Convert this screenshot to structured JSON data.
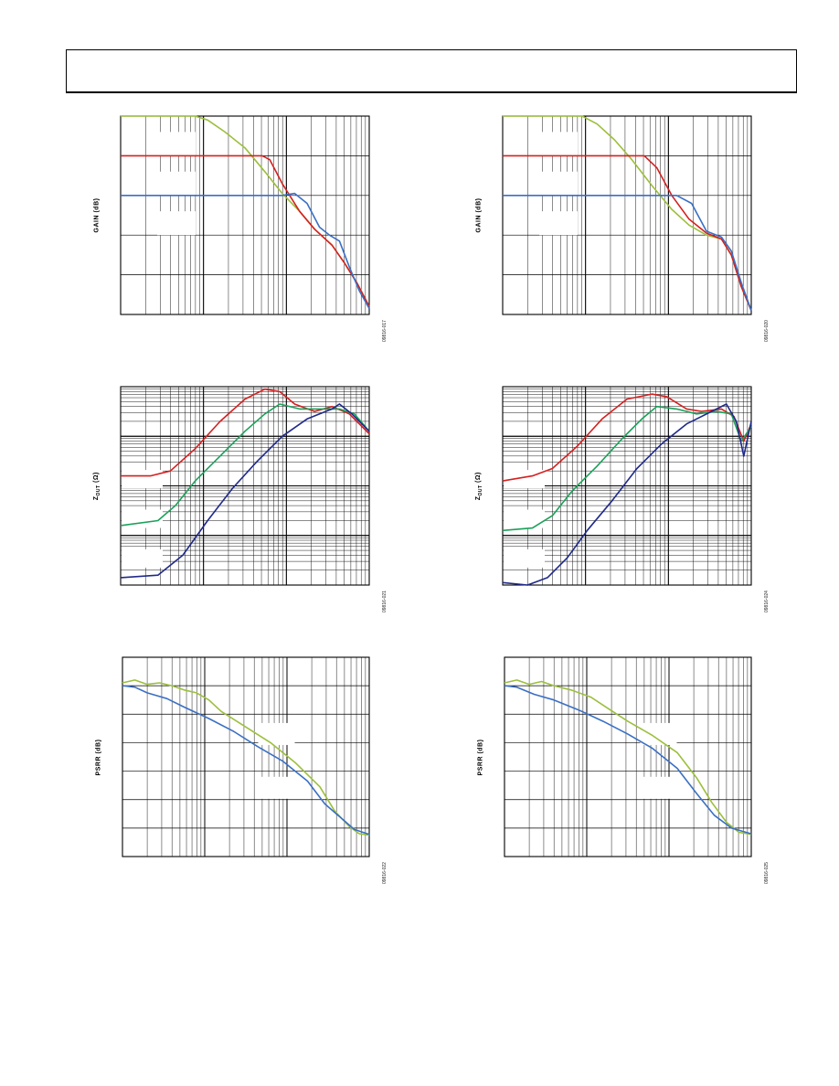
{
  "page": {
    "header_text": ""
  },
  "chart_data": [
    {
      "id": "fig-0917",
      "type": "line",
      "figure_id": "09816-017",
      "title": "",
      "xlabel": "",
      "ylabel": "GAIN (dB)",
      "x_scale": "log",
      "x_decades": 3,
      "y_divisions": 5,
      "y_scale": "linear",
      "grid": true,
      "y_label_sub": "",
      "series": [
        {
          "color": "#9cbf3c",
          "points": [
            [
              0,
              5
            ],
            [
              0.3,
              5
            ],
            [
              0.35,
              4.9
            ],
            [
              0.42,
              4.6
            ],
            [
              0.5,
              4.2
            ],
            [
              0.58,
              3.6
            ],
            [
              0.65,
              3.05
            ],
            [
              0.72,
              2.6
            ],
            [
              0.78,
              2.15
            ],
            [
              0.85,
              1.75
            ],
            [
              0.9,
              1.3
            ],
            [
              0.95,
              0.8
            ],
            [
              1,
              0.2
            ]
          ]
        },
        {
          "color": "#d42020",
          "points": [
            [
              0,
              4
            ],
            [
              0.57,
              4
            ],
            [
              0.6,
              3.9
            ],
            [
              0.65,
              3.3
            ],
            [
              0.72,
              2.6
            ],
            [
              0.78,
              2.15
            ],
            [
              0.85,
              1.75
            ],
            [
              0.9,
              1.3
            ],
            [
              0.95,
              0.8
            ],
            [
              1,
              0.2
            ]
          ]
        },
        {
          "color": "#3a6fc4",
          "points": [
            [
              0,
              3
            ],
            [
              0.65,
              3
            ],
            [
              0.7,
              3.05
            ],
            [
              0.75,
              2.8
            ],
            [
              0.8,
              2.2
            ],
            [
              0.84,
              2.0
            ],
            [
              0.88,
              1.85
            ],
            [
              0.92,
              1.2
            ],
            [
              0.96,
              0.6
            ],
            [
              1,
              0.15
            ]
          ]
        }
      ],
      "legend_boxes": 3
    },
    {
      "id": "fig-0920",
      "type": "line",
      "figure_id": "09816-020",
      "title": "",
      "xlabel": "",
      "ylabel": "GAIN (dB)",
      "x_scale": "log",
      "x_decades": 3,
      "y_divisions": 5,
      "y_scale": "linear",
      "grid": true,
      "y_label_sub": "",
      "series": [
        {
          "color": "#9cbf3c",
          "points": [
            [
              0,
              5
            ],
            [
              0.32,
              5
            ],
            [
              0.38,
              4.8
            ],
            [
              0.45,
              4.4
            ],
            [
              0.52,
              3.9
            ],
            [
              0.6,
              3.25
            ],
            [
              0.68,
              2.65
            ],
            [
              0.75,
              2.25
            ],
            [
              0.82,
              2.0
            ],
            [
              0.88,
              1.9
            ],
            [
              0.92,
              1.5
            ],
            [
              0.96,
              0.7
            ],
            [
              1,
              0.1
            ]
          ]
        },
        {
          "color": "#d42020",
          "points": [
            [
              0,
              4
            ],
            [
              0.57,
              4
            ],
            [
              0.62,
              3.7
            ],
            [
              0.68,
              3.0
            ],
            [
              0.75,
              2.4
            ],
            [
              0.82,
              2.05
            ],
            [
              0.88,
              1.9
            ],
            [
              0.92,
              1.5
            ],
            [
              0.96,
              0.7
            ],
            [
              1,
              0.1
            ]
          ]
        },
        {
          "color": "#3a6fc4",
          "points": [
            [
              0,
              3
            ],
            [
              0.6,
              3
            ],
            [
              0.7,
              3.0
            ],
            [
              0.76,
              2.8
            ],
            [
              0.82,
              2.1
            ],
            [
              0.88,
              1.95
            ],
            [
              0.92,
              1.6
            ],
            [
              0.96,
              0.8
            ],
            [
              1,
              0.1
            ]
          ]
        }
      ],
      "legend_boxes": 3
    },
    {
      "id": "fig-0921",
      "type": "line",
      "figure_id": "09816-021",
      "title": "",
      "xlabel": "",
      "ylabel": "Z",
      "y_label_sub": "OUT",
      "y_label_suffix": " (Ω)",
      "x_scale": "log",
      "x_decades": 3,
      "y_divisions": 4,
      "y_scale": "log",
      "grid": true,
      "series": [
        {
          "color": "#d42020",
          "points": [
            [
              0,
              2.2
            ],
            [
              0.12,
              2.2
            ],
            [
              0.2,
              2.3
            ],
            [
              0.3,
              2.75
            ],
            [
              0.4,
              3.3
            ],
            [
              0.5,
              3.75
            ],
            [
              0.58,
              3.95
            ],
            [
              0.64,
              3.9
            ],
            [
              0.7,
              3.65
            ],
            [
              0.78,
              3.5
            ],
            [
              0.85,
              3.6
            ],
            [
              0.92,
              3.45
            ],
            [
              1,
              3.05
            ]
          ]
        },
        {
          "color": "#1ba05a",
          "points": [
            [
              0,
              1.2
            ],
            [
              0.15,
              1.3
            ],
            [
              0.22,
              1.6
            ],
            [
              0.3,
              2.1
            ],
            [
              0.4,
              2.6
            ],
            [
              0.5,
              3.1
            ],
            [
              0.58,
              3.45
            ],
            [
              0.64,
              3.65
            ],
            [
              0.72,
              3.55
            ],
            [
              0.8,
              3.55
            ],
            [
              0.88,
              3.55
            ],
            [
              0.94,
              3.45
            ],
            [
              1,
              3.1
            ]
          ]
        },
        {
          "color": "#1f2a8a",
          "points": [
            [
              0,
              0.15
            ],
            [
              0.15,
              0.2
            ],
            [
              0.25,
              0.6
            ],
            [
              0.35,
              1.3
            ],
            [
              0.45,
              1.95
            ],
            [
              0.55,
              2.5
            ],
            [
              0.65,
              3.0
            ],
            [
              0.75,
              3.35
            ],
            [
              0.85,
              3.55
            ],
            [
              0.88,
              3.65
            ],
            [
              0.93,
              3.45
            ],
            [
              1,
              3.1
            ]
          ]
        }
      ],
      "legend_boxes": 3
    },
    {
      "id": "fig-0924",
      "type": "line",
      "figure_id": "09816-024",
      "title": "",
      "xlabel": "",
      "ylabel": "Z",
      "y_label_sub": "OUT",
      "y_label_suffix": " (Ω)",
      "x_scale": "log",
      "x_decades": 3,
      "y_divisions": 4,
      "y_scale": "log",
      "grid": true,
      "series": [
        {
          "color": "#d42020",
          "points": [
            [
              0,
              2.1
            ],
            [
              0.12,
              2.2
            ],
            [
              0.2,
              2.35
            ],
            [
              0.3,
              2.8
            ],
            [
              0.4,
              3.35
            ],
            [
              0.5,
              3.75
            ],
            [
              0.6,
              3.85
            ],
            [
              0.66,
              3.8
            ],
            [
              0.74,
              3.55
            ],
            [
              0.8,
              3.5
            ],
            [
              0.88,
              3.55
            ],
            [
              0.93,
              3.4
            ],
            [
              0.97,
              2.9
            ],
            [
              1,
              3.25
            ]
          ]
        },
        {
          "color": "#1ba05a",
          "points": [
            [
              0,
              1.1
            ],
            [
              0.12,
              1.15
            ],
            [
              0.2,
              1.4
            ],
            [
              0.28,
              1.9
            ],
            [
              0.38,
              2.4
            ],
            [
              0.48,
              2.95
            ],
            [
              0.56,
              3.35
            ],
            [
              0.62,
              3.6
            ],
            [
              0.7,
              3.55
            ],
            [
              0.78,
              3.45
            ],
            [
              0.86,
              3.5
            ],
            [
              0.92,
              3.45
            ],
            [
              0.96,
              2.9
            ],
            [
              1,
              3.2
            ]
          ]
        },
        {
          "color": "#1f2a8a",
          "points": [
            [
              0,
              0.05
            ],
            [
              0.1,
              0.0
            ],
            [
              0.18,
              0.15
            ],
            [
              0.26,
              0.55
            ],
            [
              0.34,
              1.1
            ],
            [
              0.44,
              1.7
            ],
            [
              0.54,
              2.35
            ],
            [
              0.64,
              2.85
            ],
            [
              0.74,
              3.25
            ],
            [
              0.84,
              3.5
            ],
            [
              0.9,
              3.65
            ],
            [
              0.94,
              3.3
            ],
            [
              0.97,
              2.6
            ],
            [
              1,
              3.3
            ]
          ]
        }
      ],
      "legend_boxes": 3
    },
    {
      "id": "fig-0922",
      "type": "line",
      "figure_id": "09816-022",
      "title": "",
      "xlabel": "",
      "ylabel": "PSRR (dB)",
      "x_scale": "log",
      "x_decades": 3,
      "y_divisions": 7,
      "y_scale": "linear",
      "grid": true,
      "y_label_sub": "",
      "series": [
        {
          "color": "#9cbf3c",
          "points": [
            [
              0,
              6.1
            ],
            [
              0.05,
              6.2
            ],
            [
              0.1,
              6.05
            ],
            [
              0.15,
              6.1
            ],
            [
              0.2,
              6.0
            ],
            [
              0.25,
              5.85
            ],
            [
              0.3,
              5.75
            ],
            [
              0.35,
              5.5
            ],
            [
              0.4,
              5.1
            ],
            [
              0.5,
              4.55
            ],
            [
              0.6,
              4.0
            ],
            [
              0.7,
              3.3
            ],
            [
              0.8,
              2.45
            ],
            [
              0.86,
              1.6
            ],
            [
              0.92,
              1.05
            ],
            [
              0.96,
              0.8
            ],
            [
              1,
              0.75
            ]
          ]
        },
        {
          "color": "#3a6fc4",
          "points": [
            [
              0,
              6.0
            ],
            [
              0.05,
              5.95
            ],
            [
              0.1,
              5.75
            ],
            [
              0.18,
              5.55
            ],
            [
              0.25,
              5.25
            ],
            [
              0.35,
              4.85
            ],
            [
              0.45,
              4.4
            ],
            [
              0.55,
              3.85
            ],
            [
              0.65,
              3.35
            ],
            [
              0.75,
              2.65
            ],
            [
              0.82,
              1.85
            ],
            [
              0.88,
              1.4
            ],
            [
              0.94,
              0.95
            ],
            [
              1,
              0.78
            ]
          ]
        }
      ],
      "legend_boxes": 2
    },
    {
      "id": "fig-0925",
      "type": "line",
      "figure_id": "09816-025",
      "title": "",
      "xlabel": "",
      "ylabel": "PSRR (dB)",
      "x_scale": "log",
      "x_decades": 3,
      "y_divisions": 7,
      "y_scale": "linear",
      "grid": true,
      "y_label_sub": "",
      "series": [
        {
          "color": "#9cbf3c",
          "points": [
            [
              0,
              6.1
            ],
            [
              0.05,
              6.2
            ],
            [
              0.1,
              6.05
            ],
            [
              0.15,
              6.15
            ],
            [
              0.2,
              6.0
            ],
            [
              0.27,
              5.85
            ],
            [
              0.35,
              5.6
            ],
            [
              0.42,
              5.2
            ],
            [
              0.5,
              4.75
            ],
            [
              0.6,
              4.25
            ],
            [
              0.7,
              3.65
            ],
            [
              0.78,
              2.75
            ],
            [
              0.84,
              1.9
            ],
            [
              0.9,
              1.2
            ],
            [
              0.95,
              0.85
            ],
            [
              1,
              0.78
            ]
          ]
        },
        {
          "color": "#3a6fc4",
          "points": [
            [
              0,
              6.0
            ],
            [
              0.05,
              5.95
            ],
            [
              0.12,
              5.7
            ],
            [
              0.2,
              5.5
            ],
            [
              0.3,
              5.15
            ],
            [
              0.4,
              4.75
            ],
            [
              0.5,
              4.3
            ],
            [
              0.6,
              3.8
            ],
            [
              0.7,
              3.1
            ],
            [
              0.78,
              2.2
            ],
            [
              0.85,
              1.45
            ],
            [
              0.92,
              1.0
            ],
            [
              1,
              0.8
            ]
          ]
        }
      ],
      "legend_boxes": 2
    }
  ]
}
